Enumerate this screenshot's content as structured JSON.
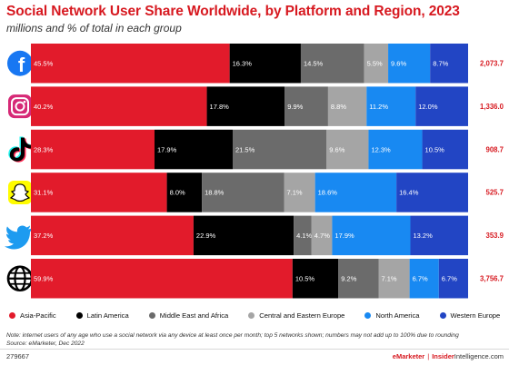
{
  "header": {
    "title": "Social Network User Share Worldwide, by Platform and Region, 2023",
    "subtitle": "millions and % of total in each group"
  },
  "chart_data": {
    "type": "bar",
    "orientation": "horizontal",
    "stacked": "100%",
    "title": "Social Network User Share Worldwide, by Platform and Region, 2023",
    "subtitle": "millions and % of total in each group",
    "categories": [
      "Facebook",
      "Instagram",
      "TikTok",
      "Snapchat",
      "Twitter",
      "Total"
    ],
    "category_icons": [
      "facebook-icon",
      "instagram-icon",
      "tiktok-icon",
      "snapchat-icon",
      "twitter-icon",
      "globe-icon"
    ],
    "totals": [
      "2,073.7",
      "1,336.0",
      "908.7",
      "525.7",
      "353.9",
      "3,756.7"
    ],
    "series": [
      {
        "name": "Asia-Pacific",
        "color": "#e21b2b",
        "values": [
          45.5,
          40.2,
          28.3,
          31.1,
          37.2,
          59.9
        ]
      },
      {
        "name": "Latin America",
        "color": "#000000",
        "values": [
          16.3,
          17.8,
          17.9,
          8.0,
          22.9,
          10.5
        ]
      },
      {
        "name": "Middle East and Africa",
        "color": "#6b6b6b",
        "values": [
          14.5,
          9.9,
          21.5,
          18.8,
          4.1,
          9.2
        ]
      },
      {
        "name": "Central and Eastern Europe",
        "color": "#a5a5a5",
        "values": [
          5.5,
          8.8,
          9.6,
          7.1,
          4.7,
          7.1
        ]
      },
      {
        "name": "North America",
        "color": "#1889f2",
        "values": [
          9.6,
          11.2,
          12.3,
          18.6,
          17.9,
          6.7
        ]
      },
      {
        "name": "Western Europe",
        "color": "#2245c4",
        "values": [
          8.7,
          12.0,
          10.5,
          16.4,
          13.2,
          6.7
        ]
      }
    ],
    "data_labels": [
      [
        "45.5%",
        "16.3%",
        "14.5%",
        "5.5%",
        "9.6%",
        "8.7%"
      ],
      [
        "40.2%",
        "17.8%",
        "9.9%",
        "8.8%",
        "11.2%",
        "12.0%"
      ],
      [
        "28.3%",
        "17.9%",
        "21.5%",
        "9.6%",
        "12.3%",
        "10.5%"
      ],
      [
        "31.1%",
        "8.0%",
        "18.8%",
        "7.1%",
        "18.6%",
        "16.4%"
      ],
      [
        "37.2%",
        "22.9%",
        "4.1%",
        "4.7%",
        "17.9%",
        "13.2%"
      ],
      [
        "59.9%",
        "10.5%",
        "9.2%",
        "7.1%",
        "6.7%",
        "6.7%"
      ]
    ],
    "legend_position": "bottom",
    "grid": false
  },
  "footer": {
    "note": "Note: internet users of any age who use a social network via any device at least once per month; top 5 networks shown; numbers may not add up to 100% due to rounding",
    "source": "Source: eMarketer, Dec 2022",
    "chart_id": "279667",
    "brand_emarketer": "eMarketer",
    "brand_separator": "|",
    "brand_insider": "Insider",
    "brand_intelligence": "Intelligence",
    "brand_domain": ".com"
  }
}
